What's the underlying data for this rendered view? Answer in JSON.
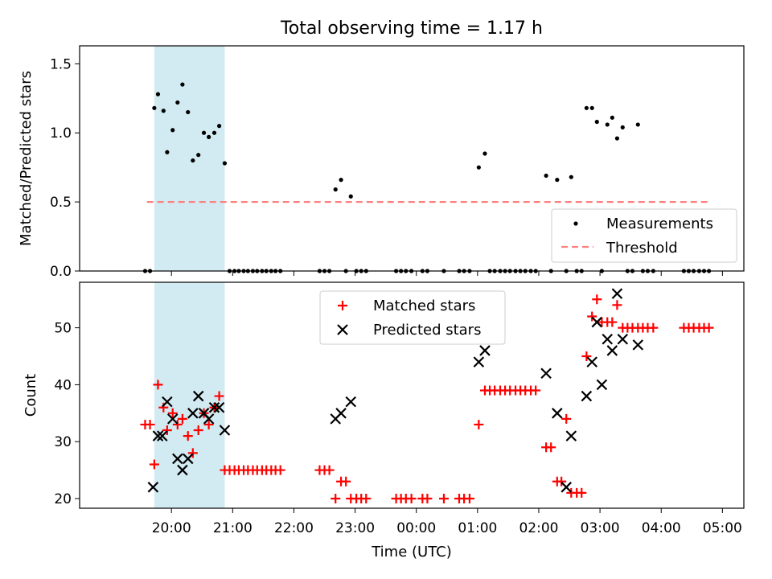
{
  "figure": {
    "title": "Total observing time = 1.17 h",
    "xlabel": "Time (UTC)",
    "x_tick_labels": [
      "20:00",
      "21:00",
      "22:00",
      "23:00",
      "00:00",
      "01:00",
      "02:00",
      "03:00",
      "04:00",
      "05:00"
    ],
    "colors": {
      "band": "#add8e6",
      "matched": "#ff0000",
      "predicted": "#000000",
      "threshold": "#ff7f7f"
    }
  },
  "chart_data": [
    {
      "type": "scatter",
      "panel": "top",
      "title": "Total observing time = 1.17 h",
      "xlabel": "",
      "ylabel": "Matched/Predicted stars",
      "x_unit": "hours since 19:00 UTC",
      "xlim": [
        18.5,
        29.35
      ],
      "ylim": [
        0,
        1.63
      ],
      "yticks": [
        0.0,
        0.5,
        1.0,
        1.5
      ],
      "ytick_labels": [
        "0.0",
        "0.5",
        "1.0",
        "1.5"
      ],
      "shaded_span": [
        19.72,
        20.87
      ],
      "legend": {
        "placement": "lower right",
        "entries": [
          "Measurements",
          "Threshold"
        ]
      },
      "threshold": {
        "name": "Threshold",
        "y": 0.5,
        "x_range": [
          19.6,
          28.8
        ],
        "style": "dashed"
      },
      "series": [
        {
          "name": "Measurements",
          "points": [
            [
              19.57,
              0
            ],
            [
              19.65,
              0
            ],
            [
              19.72,
              1.18
            ],
            [
              19.78,
              1.28
            ],
            [
              19.87,
              1.16
            ],
            [
              19.93,
              0.86
            ],
            [
              20.02,
              1.02
            ],
            [
              20.1,
              1.22
            ],
            [
              20.18,
              1.35
            ],
            [
              20.27,
              1.15
            ],
            [
              20.35,
              0.8
            ],
            [
              20.44,
              0.84
            ],
            [
              20.53,
              1.0
            ],
            [
              20.61,
              0.97
            ],
            [
              20.7,
              1.0
            ],
            [
              20.78,
              1.05
            ],
            [
              20.87,
              0.78
            ],
            [
              20.95,
              0
            ],
            [
              21.03,
              0
            ],
            [
              21.1,
              0
            ],
            [
              21.18,
              0
            ],
            [
              21.25,
              0
            ],
            [
              21.33,
              0
            ],
            [
              21.4,
              0
            ],
            [
              21.48,
              0
            ],
            [
              21.55,
              0
            ],
            [
              21.63,
              0
            ],
            [
              21.7,
              0
            ],
            [
              21.78,
              0
            ],
            [
              22.42,
              0
            ],
            [
              22.5,
              0
            ],
            [
              22.58,
              0
            ],
            [
              22.68,
              0.59
            ],
            [
              22.77,
              0.66
            ],
            [
              22.85,
              0
            ],
            [
              22.93,
              0.54
            ],
            [
              23.02,
              0
            ],
            [
              23.1,
              0
            ],
            [
              23.18,
              0
            ],
            [
              23.67,
              0
            ],
            [
              23.75,
              0
            ],
            [
              23.83,
              0
            ],
            [
              23.92,
              0
            ],
            [
              24.1,
              0
            ],
            [
              24.18,
              0
            ],
            [
              24.45,
              0
            ],
            [
              24.7,
              0
            ],
            [
              24.78,
              0
            ],
            [
              24.87,
              0
            ],
            [
              25.02,
              0.75
            ],
            [
              25.12,
              0.85
            ],
            [
              25.2,
              0
            ],
            [
              25.28,
              0
            ],
            [
              25.37,
              0
            ],
            [
              25.45,
              0
            ],
            [
              25.53,
              0
            ],
            [
              25.62,
              0
            ],
            [
              25.7,
              0
            ],
            [
              25.78,
              0
            ],
            [
              25.87,
              0
            ],
            [
              25.95,
              0
            ],
            [
              26.12,
              0.69
            ],
            [
              26.2,
              0
            ],
            [
              26.3,
              0.66
            ],
            [
              26.45,
              0
            ],
            [
              26.53,
              0.68
            ],
            [
              26.62,
              0
            ],
            [
              26.7,
              0
            ],
            [
              26.78,
              1.18
            ],
            [
              26.87,
              1.18
            ],
            [
              26.95,
              1.08
            ],
            [
              27.03,
              0
            ],
            [
              27.12,
              1.06
            ],
            [
              27.2,
              1.11
            ],
            [
              27.28,
              0.96
            ],
            [
              27.37,
              1.04
            ],
            [
              27.45,
              0
            ],
            [
              27.53,
              0
            ],
            [
              27.62,
              1.06
            ],
            [
              27.7,
              0
            ],
            [
              27.78,
              0
            ],
            [
              27.87,
              0
            ],
            [
              28.37,
              0
            ],
            [
              28.45,
              0
            ],
            [
              28.53,
              0
            ],
            [
              28.62,
              0
            ],
            [
              28.7,
              0
            ],
            [
              28.78,
              0
            ]
          ]
        }
      ]
    },
    {
      "type": "scatter",
      "panel": "bottom",
      "xlabel": "Time (UTC)",
      "ylabel": "Count",
      "x_unit": "hours since 19:00 UTC",
      "xlim": [
        18.5,
        29.35
      ],
      "ylim": [
        18.3,
        58
      ],
      "yticks": [
        20,
        30,
        40,
        50
      ],
      "ytick_labels": [
        "20",
        "30",
        "40",
        "50"
      ],
      "shaded_span": [
        19.72,
        20.87
      ],
      "legend": {
        "placement": "upper center",
        "entries": [
          "Matched stars",
          "Predicted stars"
        ]
      },
      "series": [
        {
          "name": "Matched stars",
          "marker": "+",
          "points": [
            [
              19.57,
              33
            ],
            [
              19.65,
              33
            ],
            [
              19.72,
              26
            ],
            [
              19.78,
              40
            ],
            [
              19.87,
              36
            ],
            [
              19.93,
              32
            ],
            [
              20.02,
              35
            ],
            [
              20.1,
              33
            ],
            [
              20.18,
              34
            ],
            [
              20.27,
              31
            ],
            [
              20.35,
              28
            ],
            [
              20.44,
              32
            ],
            [
              20.53,
              35
            ],
            [
              20.61,
              33
            ],
            [
              20.7,
              36
            ],
            [
              20.78,
              38
            ],
            [
              20.87,
              25
            ],
            [
              20.95,
              25
            ],
            [
              21.03,
              25
            ],
            [
              21.1,
              25
            ],
            [
              21.18,
              25
            ],
            [
              21.25,
              25
            ],
            [
              21.33,
              25
            ],
            [
              21.4,
              25
            ],
            [
              21.48,
              25
            ],
            [
              21.55,
              25
            ],
            [
              21.63,
              25
            ],
            [
              21.7,
              25
            ],
            [
              21.78,
              25
            ],
            [
              22.42,
              25
            ],
            [
              22.5,
              25
            ],
            [
              22.58,
              25
            ],
            [
              22.68,
              20
            ],
            [
              22.77,
              23
            ],
            [
              22.85,
              23
            ],
            [
              22.93,
              20
            ],
            [
              23.02,
              20
            ],
            [
              23.1,
              20
            ],
            [
              23.18,
              20
            ],
            [
              23.67,
              20
            ],
            [
              23.75,
              20
            ],
            [
              23.83,
              20
            ],
            [
              23.92,
              20
            ],
            [
              24.1,
              20
            ],
            [
              24.18,
              20
            ],
            [
              24.45,
              20
            ],
            [
              24.7,
              20
            ],
            [
              24.78,
              20
            ],
            [
              24.87,
              20
            ],
            [
              25.02,
              33
            ],
            [
              25.12,
              39
            ],
            [
              25.2,
              39
            ],
            [
              25.28,
              39
            ],
            [
              25.37,
              39
            ],
            [
              25.45,
              39
            ],
            [
              25.53,
              39
            ],
            [
              25.62,
              39
            ],
            [
              25.7,
              39
            ],
            [
              25.78,
              39
            ],
            [
              25.87,
              39
            ],
            [
              25.95,
              39
            ],
            [
              26.12,
              29
            ],
            [
              26.2,
              29
            ],
            [
              26.3,
              23
            ],
            [
              26.37,
              23
            ],
            [
              26.45,
              34
            ],
            [
              26.53,
              21
            ],
            [
              26.62,
              21
            ],
            [
              26.7,
              21
            ],
            [
              26.78,
              45
            ],
            [
              26.87,
              52
            ],
            [
              26.95,
              55
            ],
            [
              27.03,
              51
            ],
            [
              27.12,
              51
            ],
            [
              27.2,
              51
            ],
            [
              27.28,
              54
            ],
            [
              27.37,
              50
            ],
            [
              27.45,
              50
            ],
            [
              27.53,
              50
            ],
            [
              27.62,
              50
            ],
            [
              27.7,
              50
            ],
            [
              27.78,
              50
            ],
            [
              27.87,
              50
            ],
            [
              28.37,
              50
            ],
            [
              28.45,
              50
            ],
            [
              28.53,
              50
            ],
            [
              28.62,
              50
            ],
            [
              28.7,
              50
            ],
            [
              28.78,
              50
            ]
          ]
        },
        {
          "name": "Predicted stars",
          "marker": "x",
          "points": [
            [
              19.7,
              22
            ],
            [
              19.78,
              31
            ],
            [
              19.85,
              31
            ],
            [
              19.93,
              37
            ],
            [
              20.02,
              34
            ],
            [
              20.1,
              27
            ],
            [
              20.18,
              25
            ],
            [
              20.27,
              27
            ],
            [
              20.35,
              35
            ],
            [
              20.44,
              38
            ],
            [
              20.53,
              35
            ],
            [
              20.61,
              34
            ],
            [
              20.7,
              36
            ],
            [
              20.78,
              36
            ],
            [
              20.87,
              32
            ],
            [
              22.68,
              34
            ],
            [
              22.77,
              35
            ],
            [
              22.93,
              37
            ],
            [
              25.02,
              44
            ],
            [
              25.12,
              46
            ],
            [
              26.12,
              42
            ],
            [
              26.3,
              35
            ],
            [
              26.45,
              22
            ],
            [
              26.53,
              31
            ],
            [
              26.78,
              38
            ],
            [
              26.87,
              44
            ],
            [
              26.95,
              51
            ],
            [
              27.03,
              40
            ],
            [
              27.12,
              48
            ],
            [
              27.2,
              46
            ],
            [
              27.28,
              56
            ],
            [
              27.37,
              48
            ],
            [
              27.62,
              47
            ]
          ]
        }
      ]
    }
  ]
}
